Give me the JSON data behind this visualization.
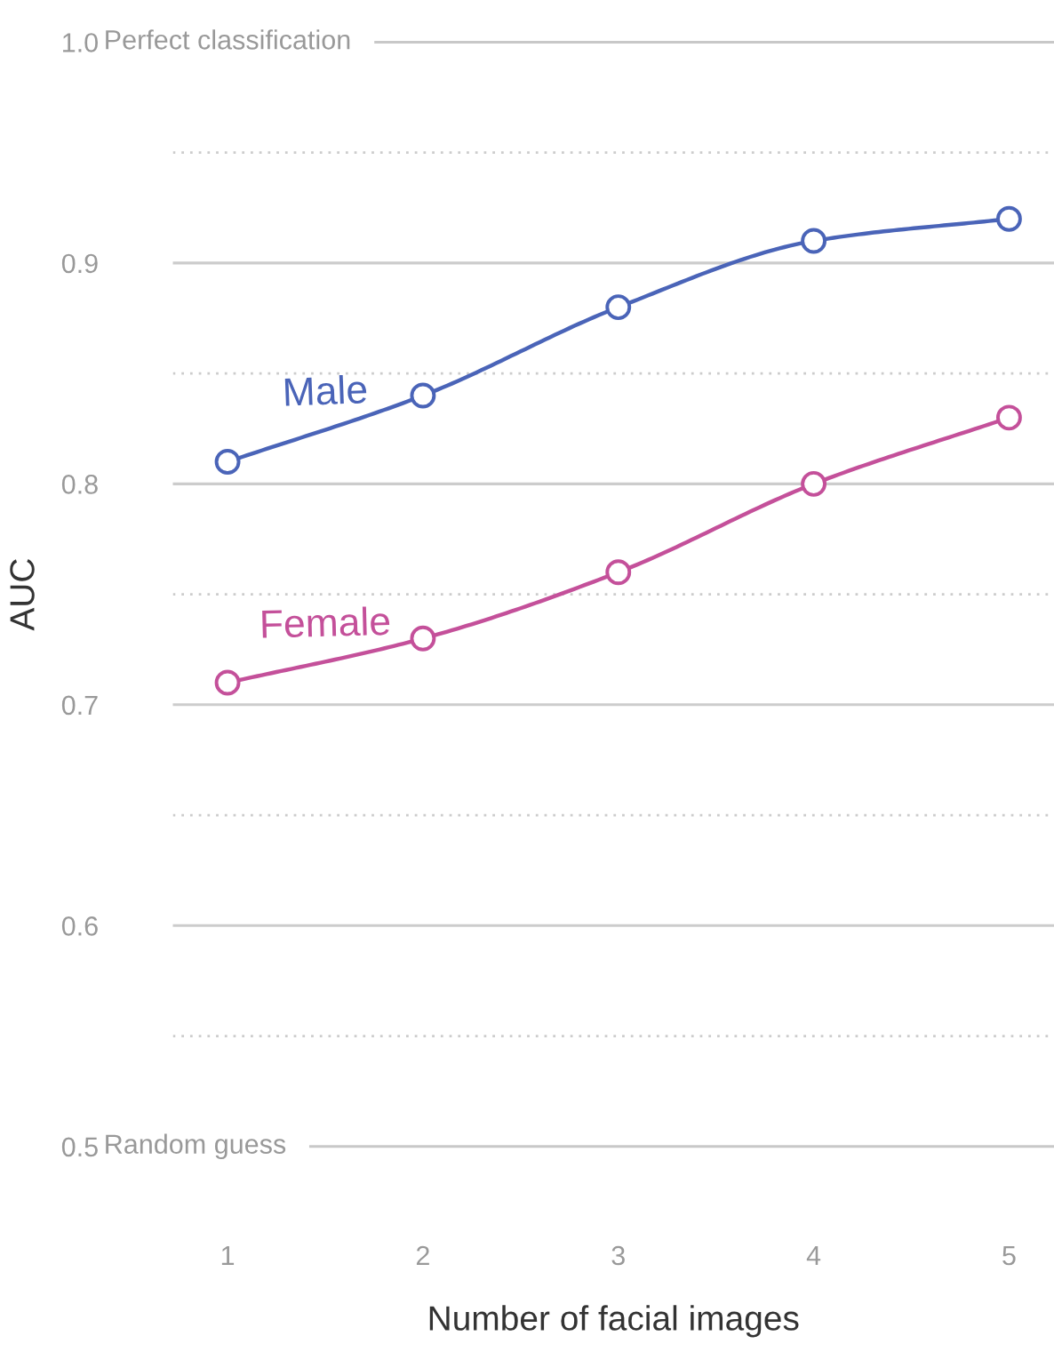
{
  "chart_data": {
    "type": "line",
    "xlabel": "Number of facial images",
    "ylabel": "AUC",
    "x": [
      1,
      2,
      3,
      4,
      5
    ],
    "series": [
      {
        "name": "Male",
        "color": "#4a64b8",
        "values": [
          0.81,
          0.84,
          0.88,
          0.91,
          0.92
        ]
      },
      {
        "name": "Female",
        "color": "#c4509a",
        "values": [
          0.71,
          0.73,
          0.76,
          0.8,
          0.83
        ]
      }
    ],
    "xlim": [
      0.72,
      5.23
    ],
    "xticks": [
      1,
      2,
      3,
      4,
      5
    ],
    "ylim": [
      0.5,
      1.0
    ],
    "yticks": [
      0.5,
      {
        "value": 0.55,
        "label": null
      },
      0.6,
      {
        "value": 0.65,
        "label": null
      },
      0.7,
      {
        "value": 0.75,
        "label": null
      },
      0.8,
      {
        "value": 0.85,
        "label": null
      },
      0.9,
      {
        "value": 0.95,
        "label": null
      },
      {
        "value": 1.0,
        "label": "1.0"
      }
    ],
    "ref_lines": [
      {
        "axis": "y",
        "value": 1.0,
        "label": "Perfect classification",
        "color": "#c8c8c8"
      },
      {
        "axis": "y",
        "value": 0.5,
        "label": "Random guess",
        "color": "#c8c8c8"
      }
    ],
    "grid": "y",
    "marker": "circle",
    "line_style": "solid",
    "legend": false
  }
}
